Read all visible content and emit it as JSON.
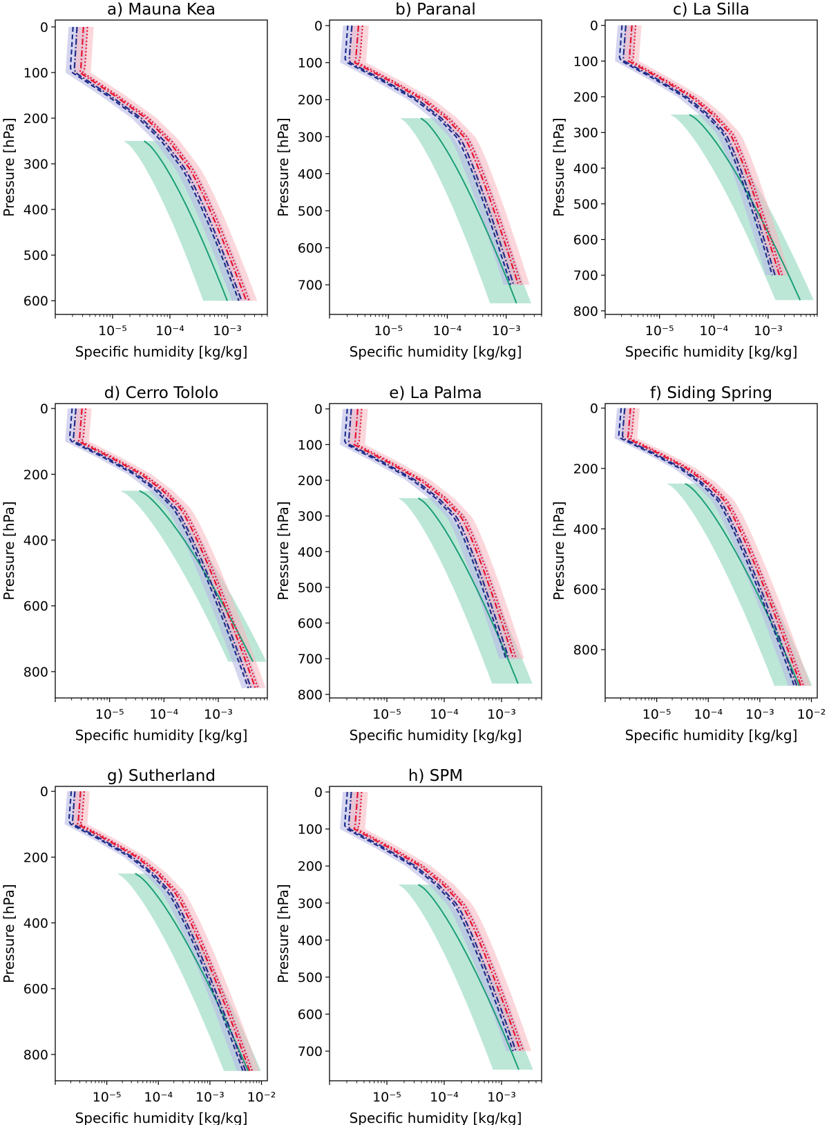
{
  "figure": {
    "xlabel": "Specific humidity [kg/kg]",
    "ylabel": "Pressure [hPa]",
    "colors": {
      "green_line": "#1a9e77",
      "green_band": "#a6dfc9",
      "blue_line": "#1f2d8a",
      "blue_band": "#b9b9e6",
      "red_line": "#e8112d",
      "red_band": "#f7b6bd"
    }
  },
  "chart_data": [
    {
      "type": "line",
      "title": "a) Mauna Kea",
      "xscale": "log",
      "xlim": [
        1e-06,
        0.005
      ],
      "xticks": [
        1e-05,
        0.0001,
        0.001
      ],
      "xticklabels": [
        "10⁻⁵",
        "10⁻⁴",
        "10⁻³"
      ],
      "ylim": [
        630,
        -15
      ],
      "yticks": [
        0,
        100,
        200,
        300,
        400,
        500,
        600
      ],
      "inverted_y": true,
      "pmax_model": 600,
      "pmax_obs": 600,
      "model_q_at_pmax": 0.002,
      "obs_q_at_pmax": 0.001
    },
    {
      "type": "line",
      "title": "b) Paranal",
      "xscale": "log",
      "xlim": [
        1e-06,
        0.004
      ],
      "xticks": [
        1e-05,
        0.0001,
        0.001
      ],
      "xticklabels": [
        "10⁻⁵",
        "10⁻⁴",
        "10⁻³"
      ],
      "ylim": [
        780,
        -15
      ],
      "yticks": [
        0,
        100,
        200,
        300,
        400,
        500,
        600,
        700
      ],
      "inverted_y": true,
      "pmax_model": 700,
      "pmax_obs": 750,
      "model_q_at_pmax": 0.0015,
      "obs_q_at_pmax": 0.0015
    },
    {
      "type": "line",
      "title": "c) La Silla",
      "xscale": "log",
      "xlim": [
        1e-06,
        0.008
      ],
      "xticks": [
        1e-05,
        0.0001,
        0.001
      ],
      "xticklabels": [
        "10⁻⁵",
        "10⁻⁴",
        "10⁻³"
      ],
      "ylim": [
        810,
        -15
      ],
      "yticks": [
        0,
        100,
        200,
        300,
        400,
        500,
        600,
        700,
        800
      ],
      "inverted_y": true,
      "pmax_model": 700,
      "pmax_obs": 775,
      "model_q_at_pmax": 0.0015,
      "obs_q_at_pmax": 0.004
    },
    {
      "type": "line",
      "title": "d) Cerro Tololo",
      "xscale": "log",
      "xlim": [
        1e-06,
        0.008
      ],
      "xticks": [
        1e-05,
        0.0001,
        0.001
      ],
      "xticklabels": [
        "10⁻⁵",
        "10⁻⁴",
        "10⁻³"
      ],
      "ylim": [
        880,
        -15
      ],
      "yticks": [
        0,
        200,
        400,
        600,
        800
      ],
      "inverted_y": true,
      "pmax_model": 850,
      "pmax_obs": 775,
      "model_q_at_pmax": 0.0045,
      "obs_q_at_pmax": 0.0045
    },
    {
      "type": "line",
      "title": "e) La Palma",
      "xscale": "log",
      "xlim": [
        1e-06,
        0.005
      ],
      "xticks": [
        1e-05,
        0.0001,
        0.001
      ],
      "xticklabels": [
        "10⁻⁵",
        "10⁻⁴",
        "10⁻³"
      ],
      "ylim": [
        810,
        -15
      ],
      "yticks": [
        0,
        100,
        200,
        300,
        400,
        500,
        600,
        700,
        800
      ],
      "inverted_y": true,
      "pmax_model": 700,
      "pmax_obs": 775,
      "model_q_at_pmax": 0.0015,
      "obs_q_at_pmax": 0.002
    },
    {
      "type": "line",
      "title": "f) Siding Spring",
      "xscale": "log",
      "xlim": [
        1e-06,
        0.013
      ],
      "xticks": [
        1e-05,
        0.0001,
        0.001,
        0.01
      ],
      "xticklabels": [
        "10⁻⁵",
        "10⁻⁴",
        "10⁻³",
        "10⁻²"
      ],
      "ylim": [
        960,
        -15
      ],
      "yticks": [
        0,
        200,
        400,
        600,
        800
      ],
      "inverted_y": true,
      "pmax_model": 925,
      "pmax_obs": 925,
      "model_q_at_pmax": 0.006,
      "obs_q_at_pmax": 0.006
    },
    {
      "type": "line",
      "title": "g) Sutherland",
      "xscale": "log",
      "xlim": [
        1e-06,
        0.013
      ],
      "xticks": [
        1e-05,
        0.0001,
        0.001,
        0.01
      ],
      "xticklabels": [
        "10⁻⁵",
        "10⁻⁴",
        "10⁻³",
        "10⁻²"
      ],
      "ylim": [
        880,
        -15
      ],
      "yticks": [
        0,
        200,
        400,
        600,
        800
      ],
      "inverted_y": true,
      "pmax_model": 850,
      "pmax_obs": 850,
      "model_q_at_pmax": 0.0055,
      "obs_q_at_pmax": 0.0055
    },
    {
      "type": "line",
      "title": "h) SPM",
      "xscale": "log",
      "xlim": [
        1e-06,
        0.005
      ],
      "xticks": [
        1e-05,
        0.0001,
        0.001
      ],
      "xticklabels": [
        "10⁻⁵",
        "10⁻⁴",
        "10⁻³"
      ],
      "ylim": [
        780,
        -15
      ],
      "yticks": [
        0,
        100,
        200,
        300,
        400,
        500,
        600,
        700
      ],
      "inverted_y": true,
      "pmax_model": 700,
      "pmax_obs": 750,
      "model_q_at_pmax": 0.002,
      "obs_q_at_pmax": 0.002
    }
  ]
}
